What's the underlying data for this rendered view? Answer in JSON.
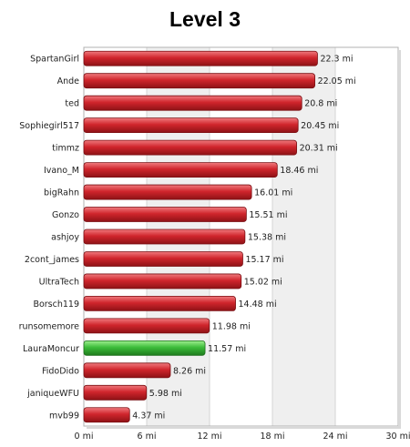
{
  "chart_data": {
    "type": "bar",
    "orientation": "horizontal",
    "title": "Level 3",
    "xlabel": "",
    "ylabel": "",
    "categories": [
      "SpartanGirl",
      "Ande",
      "ted",
      "Sophiegirl517",
      "timmz",
      "Ivano_M",
      "bigRahn",
      "Gonzo",
      "ashjoy",
      "2cont_james",
      "UltraTech",
      "Borsch119",
      "runsomemore",
      "LauraMoncur",
      "FidoDido",
      "janiqueWFU",
      "mvb99"
    ],
    "values": [
      22.3,
      22.05,
      20.8,
      20.45,
      20.31,
      18.46,
      16.01,
      15.51,
      15.38,
      15.17,
      15.02,
      14.48,
      11.98,
      11.57,
      8.26,
      5.98,
      4.37
    ],
    "value_labels": [
      "22.3 mi",
      "22.05 mi",
      "20.8 mi",
      "20.45 mi",
      "20.31 mi",
      "18.46 mi",
      "16.01 mi",
      "15.51 mi",
      "15.38 mi",
      "15.17 mi",
      "15.02 mi",
      "14.48 mi",
      "11.98 mi",
      "11.57 mi",
      "8.26 mi",
      "5.98 mi",
      "4.37 mi"
    ],
    "highlight_index": 13,
    "xlim": [
      0,
      30
    ],
    "xticks": [
      0,
      6,
      12,
      18,
      24,
      30
    ],
    "xtick_labels": [
      "0 mi",
      "6 mi",
      "12 mi",
      "18 mi",
      "24 mi",
      "30 mi"
    ],
    "grid": "alternating vertical bands",
    "colors": {
      "bar": "#c8232a",
      "highlight": "#33b233",
      "band": "#efefef",
      "axis": "#b0b0b0"
    }
  }
}
